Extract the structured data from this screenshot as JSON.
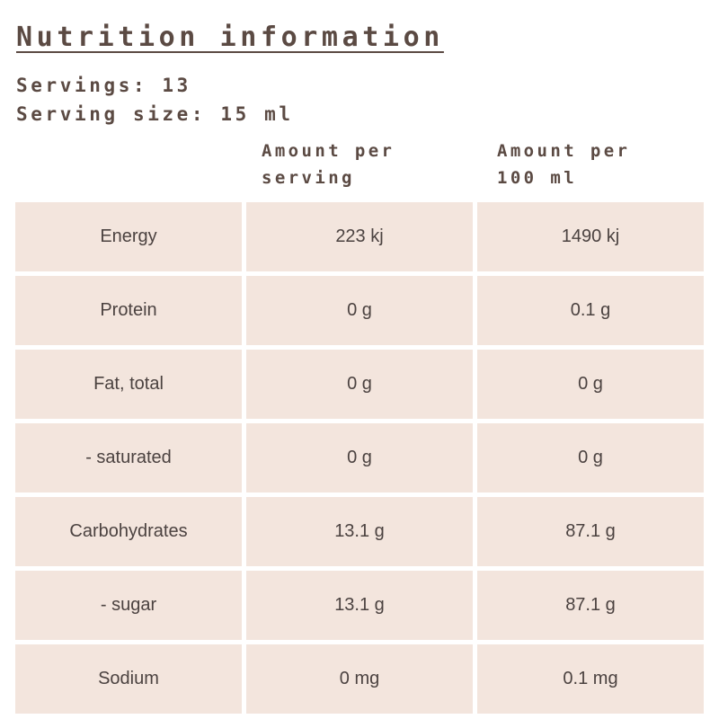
{
  "title": "Nutrition information",
  "servings": "Servings: 13",
  "serving_size": "Serving size: 15 ml",
  "columns": {
    "per_serving": [
      "Amount per",
      "serving"
    ],
    "per_100": [
      "Amount per",
      "100 ml"
    ]
  },
  "rows": [
    {
      "nutrient": "Energy",
      "per_serving": "223 kj",
      "per_100": "1490 kj"
    },
    {
      "nutrient": "Protein",
      "per_serving": "0 g",
      "per_100": "0.1 g"
    },
    {
      "nutrient": "Fat, total",
      "per_serving": "0 g",
      "per_100": "0 g"
    },
    {
      "nutrient": "- saturated",
      "per_serving": "0 g",
      "per_100": "0 g"
    },
    {
      "nutrient": "Carbohydrates",
      "per_serving": "13.1 g",
      "per_100": "87.1 g"
    },
    {
      "nutrient": "- sugar",
      "per_serving": "13.1 g",
      "per_100": "87.1 g"
    },
    {
      "nutrient": "Sodium",
      "per_serving": "0 mg",
      "per_100": "0.1 mg"
    }
  ],
  "colors": {
    "text": "#5b4a43",
    "cell_background": "#f3e5dd"
  }
}
